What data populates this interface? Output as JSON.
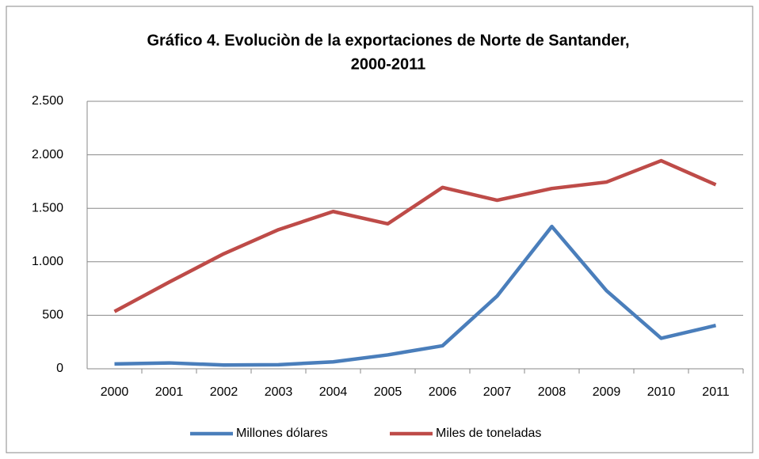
{
  "chart_data": {
    "type": "line",
    "title": [
      "Gráfico 4. Evoluciòn de la exportaciones de Norte de Santander,",
      "2000-2011"
    ],
    "categories": [
      "2000",
      "2001",
      "2002",
      "2003",
      "2004",
      "2005",
      "2006",
      "2007",
      "2008",
      "2009",
      "2010",
      "2011"
    ],
    "series": [
      {
        "name": "Millones dólares",
        "color": "#4a7ebb",
        "values": [
          45,
          55,
          35,
          38,
          65,
          130,
          215,
          680,
          1330,
          730,
          285,
          405
        ]
      },
      {
        "name": "Miles de toneladas",
        "color": "#be4b48",
        "values": [
          535,
          810,
          1075,
          1300,
          1470,
          1355,
          1695,
          1575,
          1685,
          1745,
          1945,
          1720
        ]
      }
    ],
    "ylim": [
      0,
      2500
    ],
    "yticks": [
      0,
      500,
      {
        "value": 1000,
        "label": "1.000"
      },
      {
        "value": 1500,
        "label": "1.500"
      },
      {
        "value": 2000,
        "label": "2.000"
      },
      {
        "value": 2500,
        "label": "2.500"
      }
    ],
    "grid": true,
    "legend": "bottom"
  }
}
